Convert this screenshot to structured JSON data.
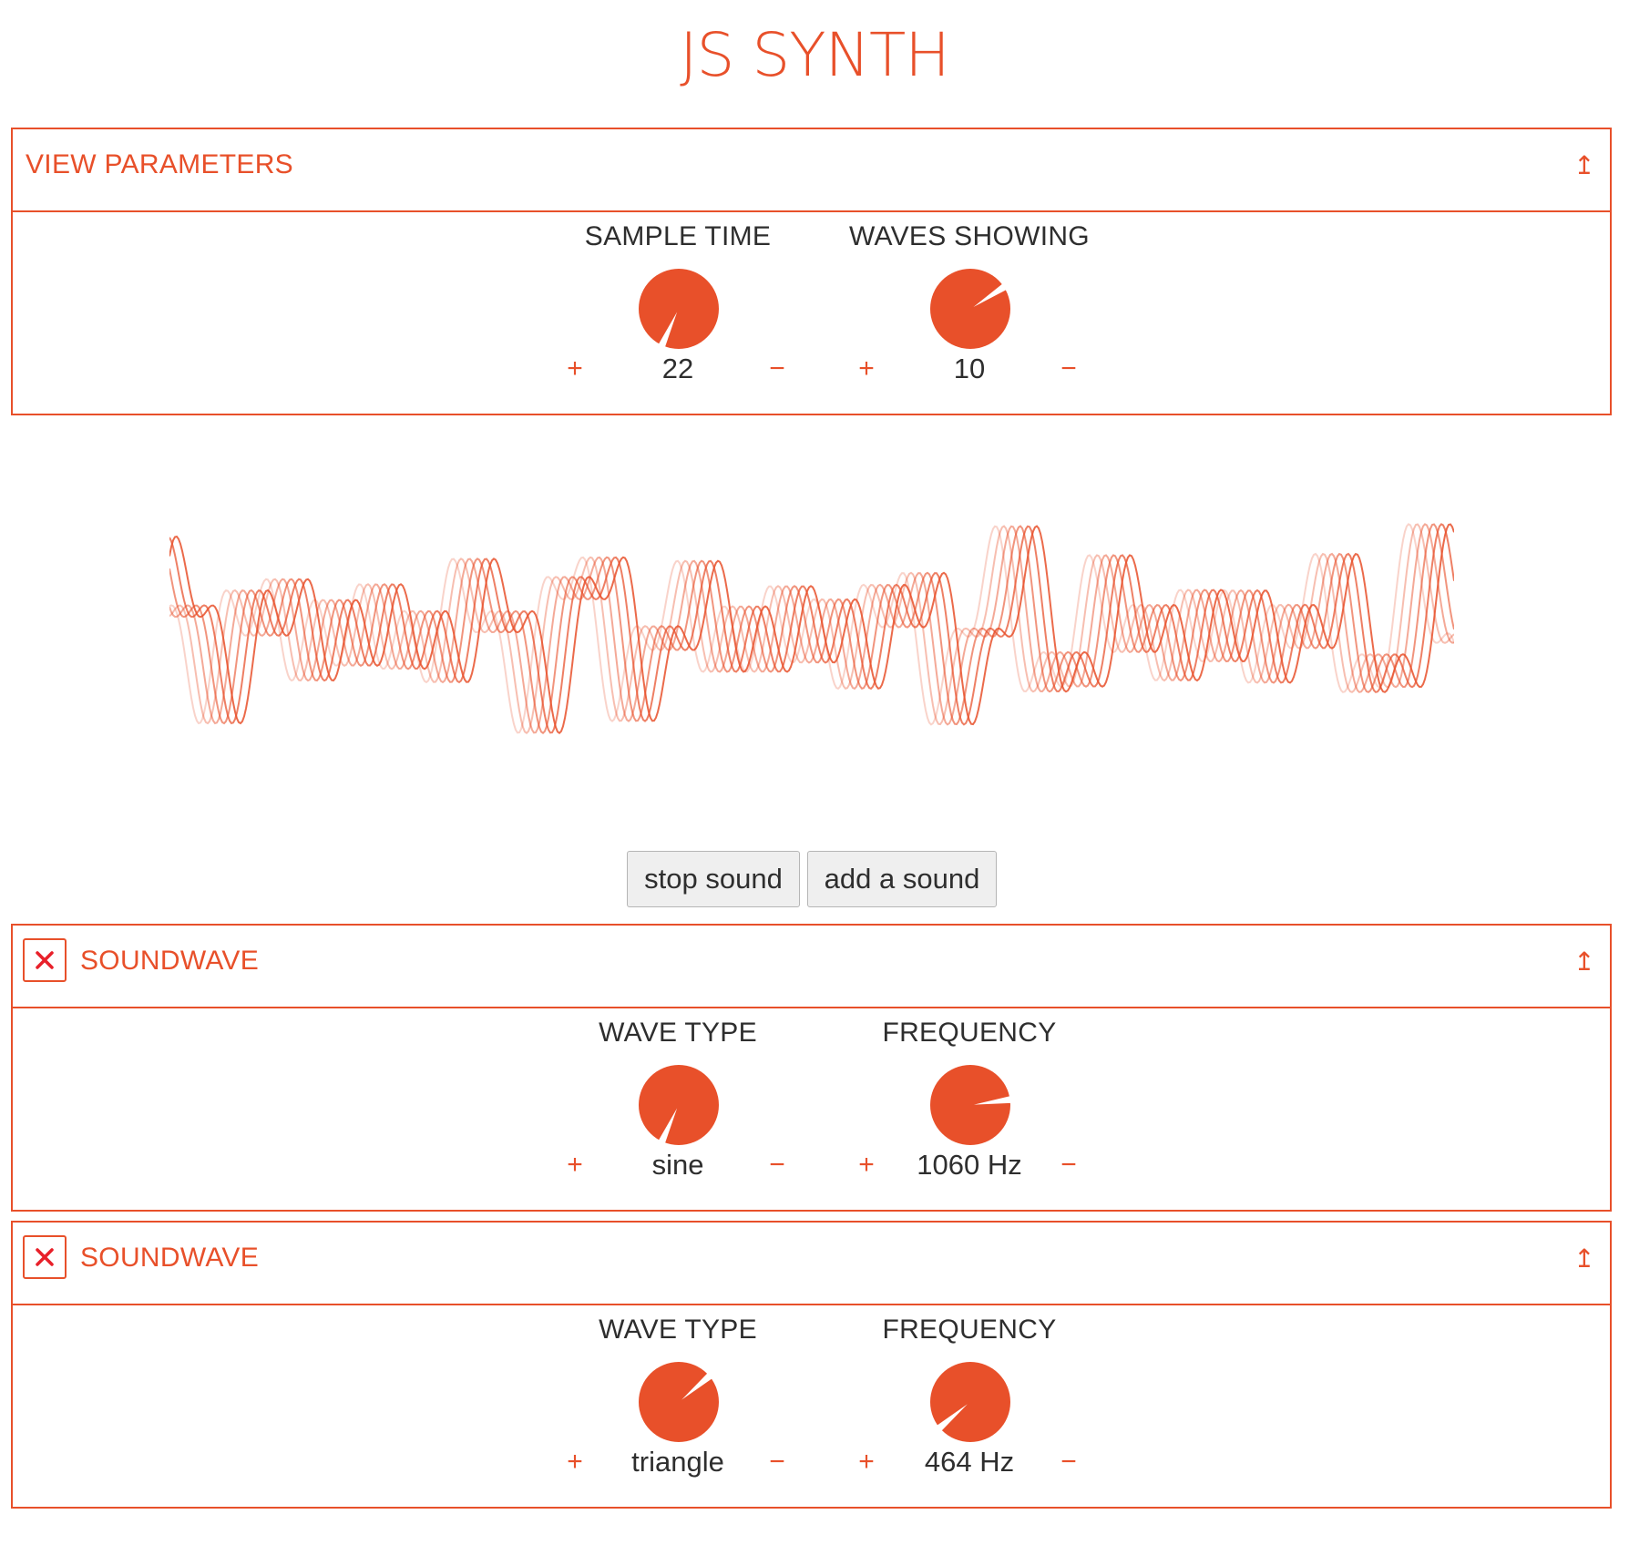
{
  "app": {
    "title": "JS SYNTH"
  },
  "colors": {
    "accent": "#e8502a",
    "remove_icon": "#e8202a",
    "text": "#2e2e2e"
  },
  "view_parameters": {
    "title": "VIEW PARAMETERS",
    "collapse_icon": "collapse-up-arrow-icon",
    "controls": [
      {
        "label": "SAMPLE TIME",
        "value": "22",
        "plus": "+",
        "minus": "−",
        "knob_level": 0.58
      },
      {
        "label": "WAVES SHOWING",
        "value": "10",
        "plus": "+",
        "minus": "−",
        "knob_level": 0.17
      }
    ]
  },
  "waveform": {
    "layers": 6
  },
  "buttons": {
    "stop": "stop sound",
    "add": "add a sound"
  },
  "soundwaves": [
    {
      "title": "SOUNDWAVE",
      "remove_icon": "close-x-icon",
      "collapse_icon": "collapse-up-arrow-icon",
      "controls": [
        {
          "label": "WAVE TYPE",
          "value": "sine",
          "plus": "+",
          "minus": "−",
          "knob_level": 0.58
        },
        {
          "label": "FREQUENCY",
          "value": "1060 Hz",
          "plus": "+",
          "minus": "−",
          "knob_level": 0.24
        }
      ]
    },
    {
      "title": "SOUNDWAVE",
      "remove_icon": "close-x-icon",
      "collapse_icon": "collapse-up-arrow-icon",
      "controls": [
        {
          "label": "WAVE TYPE",
          "value": "triangle",
          "plus": "+",
          "minus": "−",
          "knob_level": 0.15
        },
        {
          "label": "FREQUENCY",
          "value": "464 Hz",
          "plus": "+",
          "minus": "−",
          "knob_level": 0.65
        }
      ]
    }
  ]
}
